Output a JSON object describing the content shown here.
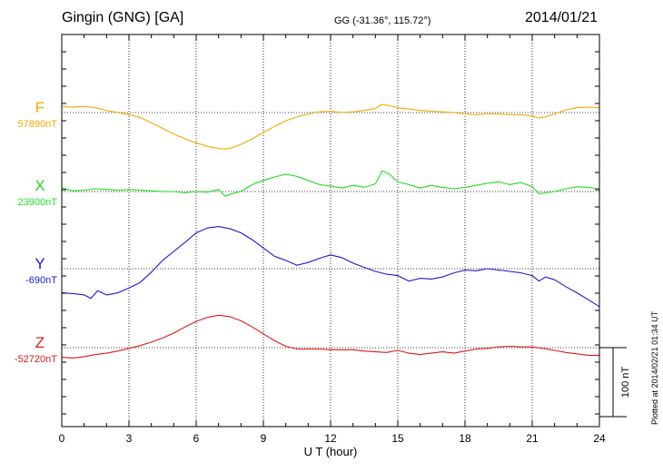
{
  "header": {
    "station": "Gingin (GNG)  [GA]",
    "coords": "GG (-31.36°, 115.72°)",
    "date": "2014/01/21",
    "plotted": "Plotted at 2014/02/21 01:34 UT"
  },
  "chart_data": {
    "type": "line",
    "xlabel": "U T (hour)",
    "xlim": [
      0,
      24
    ],
    "xticks": [
      "0",
      "3",
      "6",
      "9",
      "12",
      "15",
      "18",
      "21",
      "24"
    ],
    "grid": true,
    "scale_bar": {
      "label": "100 nT",
      "value": 100
    },
    "series": [
      {
        "name": "F",
        "color": "#f5a800",
        "baseline_label": "57890nT",
        "x": [
          0,
          0.5,
          1,
          1.5,
          2,
          2.5,
          3,
          3.5,
          4,
          4.5,
          5,
          5.5,
          6,
          6.5,
          7,
          7.3,
          7.6,
          8,
          8.5,
          9,
          9.5,
          10,
          10.5,
          11,
          11.5,
          12,
          12.5,
          13,
          13.5,
          14,
          14.3,
          14.6,
          15,
          15.5,
          16,
          16.5,
          17,
          17.5,
          18,
          18.5,
          19,
          19.5,
          20,
          20.5,
          21,
          21.3,
          21.6,
          22,
          22.5,
          23,
          23.5,
          24
        ],
        "y": [
          9,
          8,
          9,
          7,
          3,
          0,
          -3,
          -7,
          -15,
          -23,
          -31,
          -38,
          -44,
          -49,
          -52,
          -53,
          -51,
          -46,
          -38,
          -29,
          -20,
          -12,
          -6,
          -2,
          1,
          2,
          0,
          1,
          3,
          6,
          12,
          10,
          7,
          5,
          3,
          2,
          1,
          0,
          -2,
          -3,
          -2,
          -2,
          -3,
          -3,
          -5,
          -8,
          -6,
          -2,
          4,
          7,
          8,
          7
        ]
      },
      {
        "name": "X",
        "color": "#22dd22",
        "baseline_label": "23900nT",
        "x": [
          0,
          0.5,
          1,
          1.5,
          2,
          2.5,
          3,
          3.5,
          4,
          4.5,
          5,
          5.5,
          6,
          6.5,
          7,
          7.3,
          7.6,
          8,
          8.5,
          9,
          9.5,
          10,
          10.5,
          11,
          11.5,
          12,
          12.5,
          13,
          13.5,
          14,
          14.3,
          14.6,
          15,
          15.5,
          16,
          16.5,
          17,
          17.5,
          18,
          18.5,
          19,
          19.5,
          20,
          20.5,
          21,
          21.3,
          21.6,
          22,
          22.5,
          23,
          23.5,
          24
        ],
        "y": [
          5,
          1,
          2,
          4,
          3,
          2,
          3,
          2,
          1,
          0,
          0,
          -2,
          0,
          -1,
          3,
          -7,
          -3,
          0,
          10,
          16,
          21,
          25,
          22,
          16,
          10,
          8,
          5,
          9,
          6,
          11,
          30,
          26,
          14,
          10,
          5,
          9,
          6,
          4,
          6,
          9,
          12,
          14,
          10,
          13,
          7,
          -3,
          -2,
          0,
          4,
          7,
          6,
          4
        ]
      },
      {
        "name": "Y",
        "color": "#1a1ad6",
        "baseline_label": "-690nT",
        "x": [
          0,
          0.5,
          1,
          1.3,
          1.6,
          2,
          2.5,
          3,
          3.5,
          4,
          4.5,
          5,
          5.5,
          6,
          6.5,
          7,
          7.5,
          8,
          8.5,
          9,
          9.5,
          10,
          10.5,
          11,
          11.5,
          12,
          12.5,
          13,
          13.5,
          14,
          14.5,
          15,
          15.5,
          16,
          16.5,
          17,
          17.5,
          18,
          18.5,
          19,
          19.5,
          20,
          20.5,
          21,
          21.3,
          21.6,
          22,
          22.5,
          23,
          23.5,
          24
        ],
        "y": [
          -35,
          -36,
          -38,
          -43,
          -32,
          -38,
          -35,
          -28,
          -20,
          -5,
          12,
          25,
          38,
          52,
          59,
          61,
          58,
          52,
          42,
          30,
          18,
          12,
          5,
          9,
          15,
          20,
          16,
          8,
          2,
          -4,
          -8,
          -10,
          -18,
          -14,
          -15,
          -12,
          -6,
          -2,
          -3,
          0,
          -2,
          -4,
          -6,
          -10,
          -18,
          -12,
          -16,
          -26,
          -35,
          -45,
          -55
        ]
      },
      {
        "name": "Z",
        "color": "#e01818",
        "baseline_label": "-52720nT",
        "x": [
          0,
          0.5,
          1,
          1.5,
          2,
          2.5,
          3,
          3.5,
          4,
          4.5,
          5,
          5.5,
          6,
          6.5,
          7,
          7.5,
          8,
          8.5,
          9,
          9.5,
          10,
          10.5,
          11,
          11.5,
          12,
          12.5,
          13,
          13.5,
          14,
          14.5,
          15,
          15.5,
          16,
          16.5,
          17,
          17.5,
          18,
          18.5,
          19,
          19.5,
          20,
          20.5,
          21,
          21.5,
          22,
          22.5,
          23,
          23.5,
          24
        ],
        "y": [
          -14,
          -15,
          -13,
          -10,
          -8,
          -5,
          -1,
          3,
          8,
          14,
          21,
          30,
          38,
          44,
          47,
          45,
          39,
          30,
          20,
          10,
          2,
          -2,
          -2,
          -2,
          -3,
          -3,
          -3,
          -5,
          -6,
          -7,
          -4,
          -8,
          -10,
          -8,
          -6,
          -8,
          -5,
          -2,
          -1,
          1,
          2,
          1,
          1,
          -1,
          -4,
          -7,
          -9,
          -11,
          -11
        ]
      }
    ]
  }
}
